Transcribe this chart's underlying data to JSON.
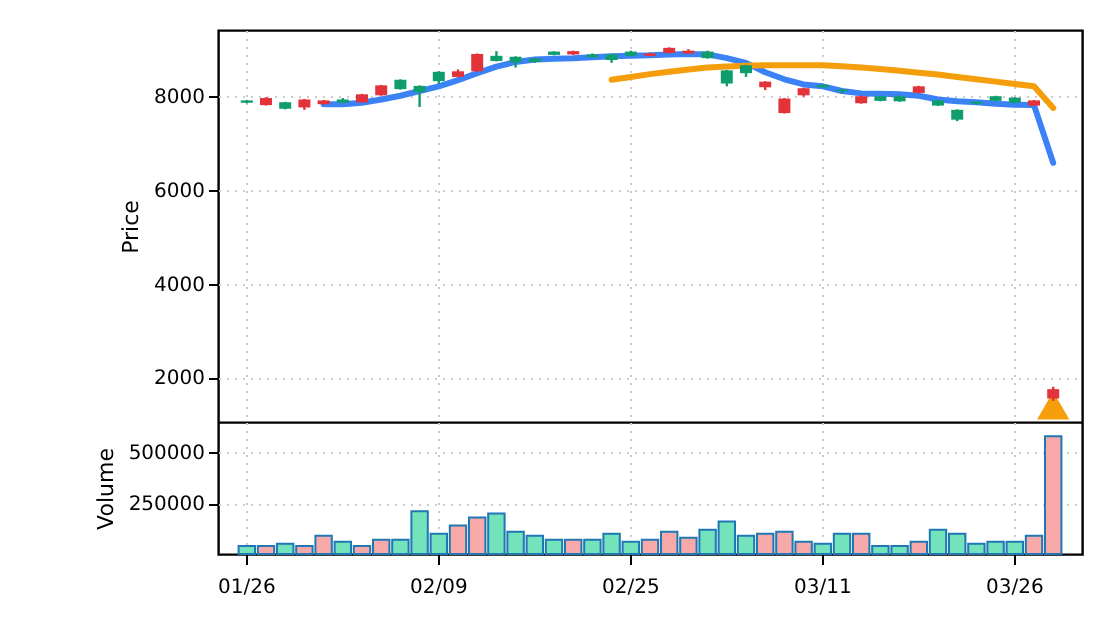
{
  "chart_data": [
    {
      "type": "candlestick",
      "ylabel": "Price",
      "ylim": [
        1050,
        9400
      ],
      "yticks": [
        2000,
        4000,
        6000,
        8000
      ],
      "grid": true,
      "tick_labels": "y",
      "categories": [
        null,
        null,
        null,
        null,
        null,
        null,
        null,
        null,
        null,
        null,
        null,
        null,
        null,
        null,
        null,
        null,
        null,
        null,
        null,
        null,
        null,
        null,
        null,
        null,
        null,
        null,
        null,
        null,
        null,
        null,
        null,
        null,
        null,
        null,
        null,
        null,
        null,
        null,
        null,
        null,
        null,
        null,
        null
      ],
      "ohlc": [
        [
          7850,
          7910,
          7840,
          7900
        ],
        [
          7950,
          7970,
          7790,
          7800
        ],
        [
          7720,
          7870,
          7710,
          7860
        ],
        [
          7920,
          7930,
          7700,
          7750
        ],
        [
          7900,
          7910,
          7810,
          7820
        ],
        [
          7850,
          7950,
          7840,
          7920
        ],
        [
          8030,
          8040,
          7850,
          7860
        ],
        [
          8220,
          8230,
          8000,
          8010
        ],
        [
          8140,
          8350,
          8130,
          8340
        ],
        [
          8080,
          8220,
          7760,
          8210
        ],
        [
          8310,
          8520,
          8250,
          8510
        ],
        [
          8520,
          8560,
          8390,
          8400
        ],
        [
          8890,
          8900,
          8510,
          8520
        ],
        [
          8740,
          8950,
          8730,
          8850
        ],
        [
          8710,
          8840,
          8600,
          8830
        ],
        [
          8720,
          8800,
          8700,
          8790
        ],
        [
          8870,
          8950,
          8860,
          8940
        ],
        [
          8950,
          8960,
          8870,
          8880
        ],
        [
          8820,
          8900,
          8800,
          8880
        ],
        [
          8760,
          8890,
          8700,
          8880
        ],
        [
          8850,
          8960,
          8840,
          8940
        ],
        [
          8900,
          8920,
          8840,
          8850
        ],
        [
          9020,
          9030,
          8900,
          8910
        ],
        [
          8960,
          8990,
          8890,
          8900
        ],
        [
          8800,
          8960,
          8790,
          8940
        ],
        [
          8260,
          8550,
          8200,
          8540
        ],
        [
          8480,
          8660,
          8400,
          8650
        ],
        [
          8300,
          8310,
          8120,
          8180
        ],
        [
          7940,
          7950,
          7620,
          7630
        ],
        [
          8160,
          8170,
          7980,
          8010
        ],
        [
          8180,
          8240,
          8170,
          8230
        ],
        [
          8100,
          8140,
          8050,
          8130
        ],
        [
          7990,
          8000,
          7830,
          7840
        ],
        [
          7890,
          8000,
          7880,
          7990
        ],
        [
          7880,
          8000,
          7870,
          7990
        ],
        [
          8200,
          8210,
          8050,
          8060
        ],
        [
          7790,
          7910,
          7780,
          7900
        ],
        [
          7490,
          7710,
          7460,
          7700
        ],
        [
          7830,
          7880,
          7800,
          7870
        ],
        [
          7890,
          8000,
          7880,
          7990
        ],
        [
          7850,
          7970,
          7840,
          7960
        ],
        [
          7900,
          7910,
          7780,
          7790
        ],
        [
          1750,
          1800,
          1500,
          1550
        ]
      ],
      "colors": [
        "#0f9d6e",
        "#e2333b",
        "#0f9d6e",
        "#e2333b",
        "#e2333b",
        "#0f9d6e",
        "#e2333b",
        "#e2333b",
        "#0f9d6e",
        "#0f9d6e",
        "#0f9d6e",
        "#e2333b",
        "#e2333b",
        "#0f9d6e",
        "#0f9d6e",
        "#0f9d6e",
        "#0f9d6e",
        "#e2333b",
        "#0f9d6e",
        "#0f9d6e",
        "#0f9d6e",
        "#e2333b",
        "#e2333b",
        "#e2333b",
        "#0f9d6e",
        "#0f9d6e",
        "#0f9d6e",
        "#e2333b",
        "#e2333b",
        "#e2333b",
        "#0f9d6e",
        "#0f9d6e",
        "#e2333b",
        "#0f9d6e",
        "#0f9d6e",
        "#e2333b",
        "#0f9d6e",
        "#0f9d6e",
        "#0f9d6e",
        "#0f9d6e",
        "#0f9d6e",
        "#e2333b",
        "#e2333b"
      ],
      "series": [
        {
          "type": "line",
          "color": "#3b82f6",
          "values": [
            null,
            null,
            null,
            null,
            7820,
            7820,
            7850,
            7920,
            8000,
            8100,
            8200,
            8330,
            8480,
            8620,
            8720,
            8770,
            8790,
            8800,
            8820,
            8840,
            8850,
            8860,
            8880,
            8890,
            8880,
            8800,
            8700,
            8500,
            8350,
            8240,
            8200,
            8100,
            8050,
            8040,
            8030,
            8000,
            7920,
            7880,
            7860,
            7830,
            7810,
            7800,
            6570
          ]
        },
        {
          "type": "line",
          "color": "#f59e0b",
          "values": [
            null,
            null,
            null,
            null,
            null,
            null,
            null,
            null,
            null,
            null,
            null,
            null,
            null,
            null,
            null,
            null,
            null,
            null,
            null,
            8340,
            8400,
            8460,
            8510,
            8560,
            8600,
            8620,
            8640,
            8650,
            8650,
            8650,
            8650,
            8630,
            8600,
            8570,
            8530,
            8490,
            8450,
            8400,
            8350,
            8300,
            8250,
            8200,
            7740
          ]
        },
        {
          "type": "scatter",
          "marker": "triangle",
          "color": "#f59e0b",
          "values": [
            null,
            null,
            null,
            null,
            null,
            null,
            null,
            null,
            null,
            null,
            null,
            null,
            null,
            null,
            null,
            null,
            null,
            null,
            null,
            null,
            null,
            null,
            null,
            null,
            null,
            null,
            null,
            null,
            null,
            null,
            null,
            null,
            null,
            null,
            null,
            null,
            null,
            null,
            null,
            null,
            null,
            null,
            1400
          ]
        }
      ]
    },
    {
      "type": "bar",
      "ylabel": "Volume",
      "ylim": [
        0,
        650000
      ],
      "yticks": [
        250000,
        500000
      ],
      "grid": true,
      "categories": [
        "01/26",
        null,
        null,
        null,
        null,
        null,
        null,
        null,
        null,
        null,
        "02/09",
        null,
        null,
        null,
        null,
        null,
        null,
        null,
        null,
        null,
        "02/25",
        null,
        null,
        null,
        null,
        null,
        null,
        null,
        null,
        null,
        "03/11",
        null,
        null,
        null,
        null,
        null,
        null,
        null,
        null,
        null,
        "03/26",
        null,
        null
      ],
      "values": [
        40000,
        40000,
        50000,
        40000,
        90000,
        60000,
        40000,
        70000,
        70000,
        210000,
        100000,
        140000,
        180000,
        200000,
        110000,
        90000,
        70000,
        70000,
        70000,
        100000,
        60000,
        70000,
        110000,
        80000,
        120000,
        160000,
        90000,
        100000,
        110000,
        60000,
        50000,
        100000,
        100000,
        40000,
        40000,
        60000,
        120000,
        100000,
        50000,
        60000,
        60000,
        90000,
        580000
      ],
      "colors": [
        "#73e3bb",
        "#f7a8a8",
        "#73e3bb",
        "#f7a8a8",
        "#f7a8a8",
        "#73e3bb",
        "#f7a8a8",
        "#f7a8a8",
        "#73e3bb",
        "#73e3bb",
        "#73e3bb",
        "#f7a8a8",
        "#f7a8a8",
        "#73e3bb",
        "#73e3bb",
        "#73e3bb",
        "#73e3bb",
        "#f7a8a8",
        "#73e3bb",
        "#73e3bb",
        "#73e3bb",
        "#f7a8a8",
        "#f7a8a8",
        "#f7a8a8",
        "#73e3bb",
        "#73e3bb",
        "#73e3bb",
        "#f7a8a8",
        "#f7a8a8",
        "#f7a8a8",
        "#73e3bb",
        "#73e3bb",
        "#f7a8a8",
        "#73e3bb",
        "#73e3bb",
        "#f7a8a8",
        "#73e3bb",
        "#73e3bb",
        "#73e3bb",
        "#73e3bb",
        "#73e3bb",
        "#f7a8a8",
        "#f7a8a8"
      ]
    }
  ]
}
